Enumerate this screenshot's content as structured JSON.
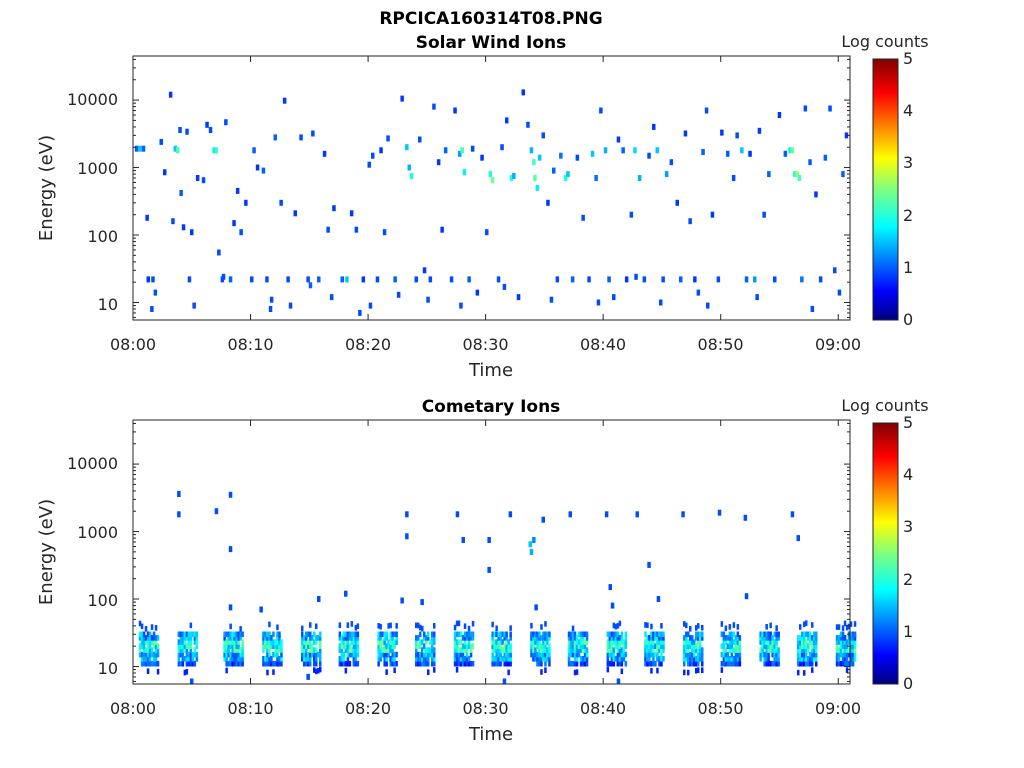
{
  "figure": {
    "title": "RPCICA160314T08.PNG"
  },
  "chart_data": [
    {
      "type": "heatmap",
      "title": "Solar Wind Ions",
      "xlabel": "Time",
      "ylabel": "Energy (eV)",
      "x_unit": "minutes after 08:00",
      "xlim": [
        "08:00",
        "09:01"
      ],
      "x_ticks": [
        "08:00",
        "08:10",
        "08:20",
        "08:30",
        "08:40",
        "08:50",
        "09:00"
      ],
      "y_scale": "log",
      "ylim": [
        5.5,
        45000
      ],
      "y_ticks": [
        "10",
        "100",
        "1000",
        "10000"
      ],
      "colorbar": {
        "label": "Log counts",
        "min": 0,
        "max": 5,
        "ticks": [
          "0",
          "1",
          "2",
          "3",
          "4",
          "5"
        ],
        "colormap": "jet"
      },
      "grid": false,
      "cells": [
        [
          0.3,
          1900,
          1.1
        ],
        [
          0.6,
          1900,
          1.6
        ],
        [
          0.9,
          1900,
          1.1
        ],
        [
          1.2,
          180,
          0.9
        ],
        [
          1.3,
          22,
          0.9
        ],
        [
          1.7,
          22,
          1.0
        ],
        [
          1.9,
          14,
          1.0
        ],
        [
          2.4,
          2400,
          1.0
        ],
        [
          2.7,
          850,
          0.9
        ],
        [
          3.2,
          12000,
          0.9
        ],
        [
          3.4,
          160,
          1.0
        ],
        [
          3.6,
          1900,
          1.6
        ],
        [
          3.8,
          1800,
          2.2
        ],
        [
          4.0,
          3600,
          1.0
        ],
        [
          4.1,
          420,
          1.1
        ],
        [
          4.3,
          130,
          0.9
        ],
        [
          4.6,
          3400,
          1.0
        ],
        [
          4.8,
          22,
          1.0
        ],
        [
          5.0,
          110,
          0.9
        ],
        [
          5.5,
          700,
          0.9
        ],
        [
          6.0,
          650,
          1.0
        ],
        [
          6.3,
          4300,
          0.9
        ],
        [
          6.6,
          3600,
          1.0
        ],
        [
          6.9,
          1800,
          1.8
        ],
        [
          7.1,
          1800,
          2.2
        ],
        [
          7.3,
          55,
          1.0
        ],
        [
          7.6,
          22,
          1.0
        ],
        [
          7.9,
          4700,
          1.0
        ],
        [
          8.3,
          22,
          1.1
        ],
        [
          8.6,
          150,
          0.9
        ],
        [
          8.9,
          450,
          0.9
        ],
        [
          9.2,
          110,
          1.0
        ],
        [
          9.6,
          300,
          0.9
        ],
        [
          10.1,
          22,
          1.0
        ],
        [
          10.3,
          1800,
          1.1
        ],
        [
          10.6,
          1000,
          0.9
        ],
        [
          11.1,
          900,
          1.1
        ],
        [
          11.4,
          22,
          1.0
        ],
        [
          11.7,
          8,
          1.0
        ],
        [
          12.1,
          2800,
          1.1
        ],
        [
          12.6,
          300,
          1.0
        ],
        [
          12.9,
          9800,
          0.9
        ],
        [
          13.2,
          22,
          1.0
        ],
        [
          13.8,
          210,
          0.9
        ],
        [
          14.3,
          2800,
          1.0
        ],
        [
          14.9,
          22,
          1.0
        ],
        [
          15.1,
          18,
          1.1
        ],
        [
          15.3,
          3200,
          1.0
        ],
        [
          15.8,
          22,
          1.1
        ],
        [
          16.3,
          1600,
          0.9
        ],
        [
          16.6,
          120,
          1.0
        ],
        [
          17.1,
          250,
          0.9
        ],
        [
          17.8,
          22,
          1.1
        ],
        [
          18.2,
          22,
          1.6
        ],
        [
          18.6,
          210,
          0.9
        ],
        [
          19.0,
          120,
          1.0
        ],
        [
          19.3,
          7,
          1.0
        ],
        [
          19.6,
          22,
          0.9
        ],
        [
          20.1,
          1100,
          1.0
        ],
        [
          20.4,
          1500,
          1.0
        ],
        [
          20.8,
          22,
          1.0
        ],
        [
          21.1,
          1800,
          0.9
        ],
        [
          21.4,
          110,
          1.0
        ],
        [
          21.7,
          2700,
          1.0
        ],
        [
          22.3,
          22,
          1.1
        ],
        [
          22.6,
          13,
          1.0
        ],
        [
          22.9,
          10500,
          0.9
        ],
        [
          23.3,
          2000,
          1.6
        ],
        [
          23.5,
          1000,
          1.5
        ],
        [
          23.7,
          750,
          2.0
        ],
        [
          24.1,
          22,
          1.0
        ],
        [
          24.4,
          2600,
          1.0
        ],
        [
          24.8,
          30,
          0.9
        ],
        [
          25.3,
          22,
          1.0
        ],
        [
          25.6,
          8000,
          1.0
        ],
        [
          26.0,
          1200,
          0.9
        ],
        [
          26.3,
          120,
          0.9
        ],
        [
          26.6,
          1800,
          1.1
        ],
        [
          27.1,
          22,
          1.0
        ],
        [
          27.4,
          7000,
          0.9
        ],
        [
          27.8,
          1600,
          1.4
        ],
        [
          28.0,
          1800,
          2.2
        ],
        [
          28.2,
          850,
          1.8
        ],
        [
          28.6,
          22,
          1.1
        ],
        [
          28.9,
          1900,
          1.0
        ],
        [
          29.3,
          14,
          0.9
        ],
        [
          29.7,
          1400,
          0.9
        ],
        [
          30.1,
          110,
          1.0
        ],
        [
          30.4,
          800,
          2.0
        ],
        [
          30.6,
          650,
          2.4
        ],
        [
          31.1,
          22,
          1.0
        ],
        [
          31.4,
          2000,
          1.0
        ],
        [
          31.8,
          5000,
          0.9
        ],
        [
          32.2,
          700,
          2.0
        ],
        [
          32.4,
          750,
          1.5
        ],
        [
          32.8,
          12,
          0.9
        ],
        [
          33.2,
          13000,
          0.9
        ],
        [
          33.6,
          4300,
          1.0
        ],
        [
          33.9,
          1800,
          1.5
        ],
        [
          34.1,
          1200,
          2.2
        ],
        [
          34.2,
          700,
          2.3
        ],
        [
          34.4,
          500,
          1.8
        ],
        [
          34.6,
          1400,
          1.6
        ],
        [
          34.9,
          3000,
          1.0
        ],
        [
          35.3,
          300,
          0.9
        ],
        [
          35.8,
          900,
          1.1
        ],
        [
          36.1,
          22,
          1.0
        ],
        [
          36.4,
          1500,
          1.2
        ],
        [
          36.8,
          700,
          2.0
        ],
        [
          37.0,
          800,
          1.6
        ],
        [
          37.4,
          22,
          1.1
        ],
        [
          37.8,
          1400,
          1.0
        ],
        [
          38.3,
          180,
          1.0
        ],
        [
          38.8,
          22,
          1.0
        ],
        [
          39.1,
          1600,
          1.6
        ],
        [
          39.4,
          700,
          1.2
        ],
        [
          39.8,
          7000,
          1.0
        ],
        [
          40.2,
          1800,
          1.5
        ],
        [
          40.5,
          22,
          1.1
        ],
        [
          40.9,
          12,
          1.0
        ],
        [
          41.3,
          2600,
          0.9
        ],
        [
          41.7,
          1800,
          1.1
        ],
        [
          42.0,
          22,
          0.9
        ],
        [
          42.4,
          200,
          1.0
        ],
        [
          42.7,
          1800,
          1.7
        ],
        [
          43.1,
          700,
          1.5
        ],
        [
          43.5,
          22,
          1.0
        ],
        [
          43.9,
          1500,
          1.0
        ],
        [
          44.3,
          4000,
          0.9
        ],
        [
          44.6,
          1800,
          1.6
        ],
        [
          45.1,
          22,
          1.0
        ],
        [
          45.4,
          800,
          1.4
        ],
        [
          45.8,
          1200,
          1.0
        ],
        [
          46.3,
          300,
          0.9
        ],
        [
          46.6,
          22,
          1.1
        ],
        [
          47.0,
          3200,
          0.9
        ],
        [
          47.4,
          160,
          1.0
        ],
        [
          47.8,
          22,
          0.9
        ],
        [
          48.1,
          14,
          1.0
        ],
        [
          48.5,
          1700,
          1.1
        ],
        [
          48.8,
          7000,
          1.0
        ],
        [
          49.3,
          200,
          0.9
        ],
        [
          49.8,
          22,
          1.0
        ],
        [
          50.1,
          3300,
          0.9
        ],
        [
          50.6,
          1600,
          1.1
        ],
        [
          51.1,
          700,
          1.0
        ],
        [
          51.4,
          3000,
          1.0
        ],
        [
          51.8,
          1800,
          1.6
        ],
        [
          52.2,
          22,
          1.1
        ],
        [
          52.5,
          1600,
          0.9
        ],
        [
          52.9,
          22,
          1.4
        ],
        [
          53.3,
          3500,
          0.9
        ],
        [
          53.7,
          200,
          1.0
        ],
        [
          54.1,
          800,
          1.1
        ],
        [
          54.6,
          22,
          1.0
        ],
        [
          55.0,
          6000,
          0.9
        ],
        [
          55.5,
          1600,
          1.1
        ],
        [
          55.9,
          1800,
          1.8
        ],
        [
          56.1,
          1800,
          2.4
        ],
        [
          56.3,
          800,
          2.0
        ],
        [
          56.5,
          800,
          2.6
        ],
        [
          56.7,
          700,
          2.2
        ],
        [
          56.9,
          22,
          1.2
        ],
        [
          57.2,
          7500,
          1.0
        ],
        [
          57.6,
          1200,
          1.1
        ],
        [
          58.1,
          400,
          0.9
        ],
        [
          58.5,
          22,
          1.0
        ],
        [
          58.9,
          1400,
          1.1
        ],
        [
          59.3,
          7500,
          1.0
        ],
        [
          59.7,
          30,
          1.0
        ],
        [
          60.1,
          14,
          1.0
        ],
        [
          60.4,
          800,
          1.1
        ],
        [
          60.7,
          3000,
          0.9
        ],
        [
          1.6,
          8,
          1.0
        ],
        [
          5.2,
          9,
          1.0
        ],
        [
          7.7,
          24,
          1.0
        ],
        [
          11.8,
          11,
          1.0
        ],
        [
          13.4,
          9,
          1.0
        ],
        [
          16.9,
          12,
          1.0
        ],
        [
          20.2,
          9,
          1.0
        ],
        [
          25.1,
          11,
          1.0
        ],
        [
          27.9,
          9,
          1.0
        ],
        [
          31.6,
          17,
          1.0
        ],
        [
          35.6,
          11,
          1.0
        ],
        [
          39.6,
          10,
          1.0
        ],
        [
          42.8,
          24,
          1.0
        ],
        [
          44.9,
          10,
          1.0
        ],
        [
          48.9,
          9,
          1.0
        ],
        [
          53.1,
          12,
          1.0
        ],
        [
          57.8,
          8,
          1.0
        ]
      ]
    },
    {
      "type": "heatmap",
      "title": "Cometary Ions",
      "xlabel": "Time",
      "ylabel": "Energy (eV)",
      "x_unit": "minutes after 08:00",
      "xlim": [
        "08:00",
        "09:01"
      ],
      "x_ticks": [
        "08:00",
        "08:10",
        "08:20",
        "08:30",
        "08:40",
        "08:50",
        "09:00"
      ],
      "y_scale": "log",
      "ylim": [
        5.5,
        45000
      ],
      "y_ticks": [
        "10",
        "100",
        "1000",
        "10000"
      ],
      "colorbar": {
        "label": "Log counts",
        "min": 0,
        "max": 5,
        "ticks": [
          "0",
          "1",
          "2",
          "3",
          "4",
          "5"
        ],
        "colormap": "jet"
      },
      "grid": false,
      "bands": [
        0.6,
        3.9,
        7.8,
        11.1,
        14.4,
        17.6,
        20.9,
        24.1,
        27.4,
        30.6,
        33.9,
        37.1,
        40.4,
        43.6,
        46.9,
        50.1,
        53.4,
        56.6,
        59.9
      ],
      "cells": [
        [
          3.9,
          3600,
          1.0
        ],
        [
          3.9,
          1800,
          1.0
        ],
        [
          7.1,
          2000,
          1.0
        ],
        [
          8.3,
          3500,
          1.0
        ],
        [
          8.3,
          550,
          1.0
        ],
        [
          8.3,
          75,
          1.0
        ],
        [
          10.9,
          70,
          1.0
        ],
        [
          15.8,
          100,
          1.0
        ],
        [
          18.1,
          120,
          1.0
        ],
        [
          23.3,
          1800,
          1.0
        ],
        [
          23.3,
          850,
          1.0
        ],
        [
          22.9,
          95,
          1.0
        ],
        [
          24.6,
          90,
          1.0
        ],
        [
          27.6,
          1800,
          1.0
        ],
        [
          28.1,
          750,
          1.0
        ],
        [
          30.3,
          750,
          1.0
        ],
        [
          30.3,
          270,
          1.0
        ],
        [
          32.1,
          1800,
          1.0
        ],
        [
          33.8,
          650,
          1.6
        ],
        [
          33.9,
          500,
          1.5
        ],
        [
          34.1,
          750,
          1.3
        ],
        [
          34.3,
          75,
          1.0
        ],
        [
          34.9,
          1500,
          1.0
        ],
        [
          37.2,
          1800,
          1.0
        ],
        [
          40.3,
          1800,
          1.0
        ],
        [
          40.6,
          150,
          1.0
        ],
        [
          40.8,
          80,
          1.0
        ],
        [
          42.9,
          1800,
          1.0
        ],
        [
          43.9,
          320,
          1.0
        ],
        [
          44.7,
          100,
          1.0
        ],
        [
          46.8,
          1800,
          1.0
        ],
        [
          49.9,
          1900,
          1.0
        ],
        [
          52.2,
          110,
          1.0
        ],
        [
          52.1,
          1600,
          1.0
        ],
        [
          56.1,
          1800,
          1.0
        ],
        [
          56.6,
          800,
          1.0
        ],
        [
          31.6,
          6,
          1.0
        ],
        [
          41.3,
          6,
          1.0
        ],
        [
          14.9,
          7,
          1.0
        ],
        [
          5.0,
          6,
          1.0
        ]
      ]
    }
  ]
}
